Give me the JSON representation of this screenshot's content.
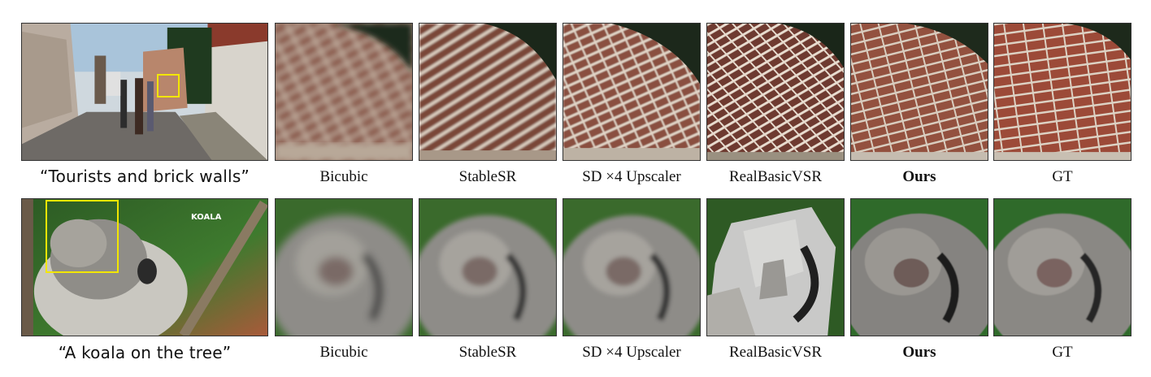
{
  "rows": [
    {
      "prompt": "“Tourists and brick walls”",
      "captions": [
        "Bicubic",
        "StableSR",
        "SD ×4 Upscaler",
        "RealBasicVSR",
        "Ours",
        "GT"
      ],
      "bold_index": 4
    },
    {
      "prompt": "“A koala on the tree”",
      "overlay_text": "KOALA",
      "captions": [
        "Bicubic",
        "StableSR",
        "SD ×4 Upscaler",
        "RealBasicVSR",
        "Ours",
        "GT"
      ],
      "bold_index": 4
    }
  ],
  "colors": {
    "highlight_box": "#f2e600",
    "brick": "#9a4a3a",
    "mortar": "#d8cfc4",
    "koala_fur": "#8c8c8c",
    "background_green": "#2f6a2a"
  }
}
